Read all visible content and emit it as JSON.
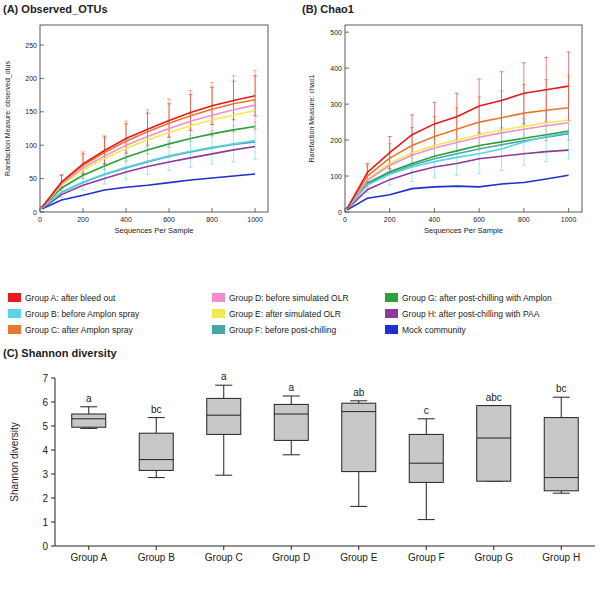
{
  "chart_data": [
    {
      "type": "line",
      "title": "(A) Observed_OTUs",
      "x_label": "Sequences Per Sample",
      "y_label": "Rarefaction Measure: observed_otus",
      "x": [
        10,
        100,
        200,
        300,
        400,
        500,
        600,
        700,
        800,
        900,
        1000
      ],
      "xlim": [
        0,
        1060
      ],
      "xticks": [
        0,
        200,
        400,
        600,
        800,
        1000
      ],
      "ylim": [
        0,
        280
      ],
      "yticks": [
        0,
        50,
        100,
        150,
        200,
        250
      ],
      "grid": false,
      "legend": "bottom",
      "series": [
        {
          "name": "Group A: after bleed out",
          "color": "#e41a1c",
          "values": [
            7,
            45,
            72,
            92,
            110,
            124,
            137,
            149,
            159,
            167,
            174
          ],
          "errors": [
            1,
            10,
            15,
            20,
            22,
            24,
            25,
            27,
            28,
            29,
            30
          ]
        },
        {
          "name": "Group B: before Amplon spray",
          "color": "#5bd3e8",
          "values": [
            6,
            30,
            45,
            57,
            67,
            76,
            84,
            91,
            97,
            102,
            107
          ],
          "errors": [
            1,
            8,
            12,
            15,
            18,
            20,
            22,
            24,
            25,
            27,
            28
          ]
        },
        {
          "name": "Group C: after Amplon spray",
          "color": "#e8772e",
          "values": [
            7,
            44,
            70,
            89,
            106,
            120,
            133,
            144,
            154,
            162,
            168
          ],
          "errors": [
            1,
            12,
            20,
            25,
            30,
            33,
            36,
            38,
            40,
            42,
            44
          ]
        },
        {
          "name": "Group D: before simulated OLR",
          "color": "#ef8fce",
          "values": [
            7,
            42,
            66,
            84,
            100,
            113,
            125,
            136,
            145,
            153,
            160
          ]
        },
        {
          "name": "Group E: after simulated OLR",
          "color": "#f2e94e",
          "values": [
            7,
            40,
            63,
            80,
            95,
            108,
            119,
            129,
            138,
            145,
            152
          ]
        },
        {
          "name": "Group F: before post-chilling",
          "color": "#4aa6a6",
          "values": [
            6,
            29,
            44,
            56,
            66,
            75,
            83,
            90,
            96,
            101,
            105
          ]
        },
        {
          "name": "Group G: after post-chilling with Amplon",
          "color": "#2e9e3e",
          "values": [
            6,
            36,
            55,
            69,
            82,
            93,
            102,
            110,
            117,
            123,
            128
          ]
        },
        {
          "name": "Group H: after post-chilling with PAA",
          "color": "#8e3a9a",
          "values": [
            5,
            26,
            40,
            50,
            60,
            68,
            75,
            81,
            87,
            93,
            98
          ]
        },
        {
          "name": "Mock community",
          "color": "#1f2fd0",
          "values": [
            5,
            18,
            25,
            33,
            37,
            40,
            44,
            48,
            51,
            54,
            57
          ]
        }
      ]
    },
    {
      "type": "line",
      "title": "(B) Chao1",
      "x_label": "Sequences Per Sample",
      "y_label": "Rarefaction Measure: chao1",
      "x": [
        10,
        100,
        200,
        300,
        400,
        500,
        600,
        700,
        800,
        900,
        1000
      ],
      "xlim": [
        0,
        1060
      ],
      "xticks": [
        0,
        200,
        400,
        600,
        800,
        1000
      ],
      "ylim": [
        0,
        520
      ],
      "yticks": [
        0,
        100,
        200,
        300,
        400,
        500
      ],
      "grid": false,
      "series": [
        {
          "color": "#e41a1c",
          "values": [
            10,
            110,
            165,
            215,
            245,
            265,
            295,
            310,
            330,
            340,
            350
          ],
          "errors": [
            2,
            25,
            45,
            55,
            60,
            65,
            75,
            80,
            85,
            90,
            95
          ]
        },
        {
          "color": "#5bd3e8",
          "values": [
            9,
            75,
            105,
            125,
            140,
            152,
            162,
            175,
            195,
            210,
            222
          ],
          "errors": [
            2,
            20,
            30,
            40,
            45,
            50,
            55,
            60,
            65,
            70,
            75
          ]
        },
        {
          "color": "#e8772e",
          "values": [
            10,
            100,
            150,
            185,
            210,
            230,
            250,
            262,
            275,
            283,
            290
          ],
          "errors": [
            2,
            30,
            40,
            50,
            55,
            60,
            70,
            75,
            80,
            85,
            90
          ]
        },
        {
          "color": "#ef8fce",
          "values": [
            10,
            88,
            130,
            158,
            178,
            193,
            208,
            220,
            230,
            240,
            248
          ]
        },
        {
          "color": "#f2e94e",
          "values": [
            10,
            90,
            135,
            165,
            185,
            200,
            215,
            228,
            238,
            248,
            255
          ]
        },
        {
          "color": "#4aa6a6",
          "values": [
            9,
            78,
            108,
            130,
            148,
            162,
            175,
            187,
            198,
            208,
            218
          ]
        },
        {
          "color": "#2e9e3e",
          "values": [
            9,
            80,
            112,
            135,
            155,
            170,
            185,
            195,
            205,
            215,
            225
          ]
        },
        {
          "color": "#8e3a9a",
          "values": [
            8,
            62,
            90,
            110,
            125,
            135,
            148,
            155,
            162,
            168,
            172
          ]
        },
        {
          "color": "#1f2fd0",
          "values": [
            6,
            38,
            48,
            65,
            70,
            72,
            70,
            78,
            82,
            92,
            102
          ]
        }
      ]
    },
    {
      "type": "box",
      "title": "(C) Shannon diversity",
      "y_label": "Shannon diversity",
      "categories": [
        "Group A",
        "Group B",
        "Group C",
        "Group D",
        "Group E",
        "Group F",
        "Group G",
        "Group H"
      ],
      "min": [
        4.9,
        2.85,
        2.95,
        3.8,
        1.65,
        1.1,
        2.7,
        2.2
      ],
      "q1": [
        4.95,
        3.15,
        4.65,
        4.4,
        3.1,
        2.65,
        2.7,
        2.3
      ],
      "median": [
        5.3,
        3.6,
        5.45,
        5.5,
        5.6,
        3.45,
        4.5,
        2.85
      ],
      "q3": [
        5.5,
        4.7,
        6.15,
        5.9,
        5.95,
        4.65,
        5.85,
        5.35
      ],
      "max": [
        5.8,
        5.35,
        6.7,
        6.25,
        6.05,
        5.3,
        5.85,
        6.2
      ],
      "annotations": [
        "a",
        "bc",
        "a",
        "a",
        "ab",
        "c",
        "abc",
        "bc"
      ],
      "color": "#c8c8c8",
      "ylim": [
        0,
        7
      ],
      "yticks": [
        0,
        1,
        2,
        3,
        4,
        5,
        6,
        7
      ],
      "grid": false
    }
  ]
}
